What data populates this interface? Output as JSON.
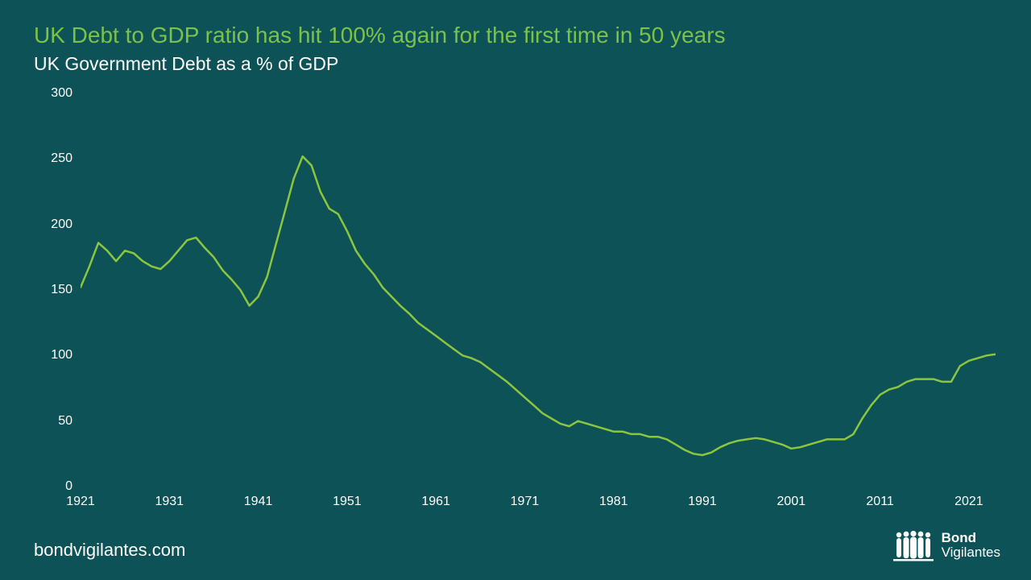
{
  "title": "UK Debt to GDP ratio has hit 100% again for the first time in 50 years",
  "subtitle": "UK Government Debt as a % of GDP",
  "footer_url": "bondvigilantes.com",
  "brand": {
    "line1": "Bond",
    "line2": "Vigilantes"
  },
  "chart": {
    "type": "line",
    "background_color": "#0d5257",
    "title_color": "#7cc24a",
    "text_color": "#ffffff",
    "line_color": "#8cc63f",
    "line_width": 2.5,
    "axis_fontsize": 16,
    "title_fontsize": 28,
    "subtitle_fontsize": 23,
    "x": {
      "min": 1921,
      "max": 2024,
      "ticks": [
        1921,
        1931,
        1941,
        1951,
        1961,
        1971,
        1981,
        1991,
        2001,
        2011,
        2021
      ]
    },
    "y": {
      "min": 0,
      "max": 300,
      "ticks": [
        0,
        50,
        100,
        150,
        200,
        250,
        300
      ]
    },
    "series": [
      {
        "year": 1921,
        "value": 152
      },
      {
        "year": 1922,
        "value": 168
      },
      {
        "year": 1923,
        "value": 186
      },
      {
        "year": 1924,
        "value": 180
      },
      {
        "year": 1925,
        "value": 172
      },
      {
        "year": 1926,
        "value": 180
      },
      {
        "year": 1927,
        "value": 178
      },
      {
        "year": 1928,
        "value": 172
      },
      {
        "year": 1929,
        "value": 168
      },
      {
        "year": 1930,
        "value": 166
      },
      {
        "year": 1931,
        "value": 172
      },
      {
        "year": 1932,
        "value": 180
      },
      {
        "year": 1933,
        "value": 188
      },
      {
        "year": 1934,
        "value": 190
      },
      {
        "year": 1935,
        "value": 182
      },
      {
        "year": 1936,
        "value": 175
      },
      {
        "year": 1937,
        "value": 165
      },
      {
        "year": 1938,
        "value": 158
      },
      {
        "year": 1939,
        "value": 150
      },
      {
        "year": 1940,
        "value": 138
      },
      {
        "year": 1941,
        "value": 145
      },
      {
        "year": 1942,
        "value": 160
      },
      {
        "year": 1943,
        "value": 185
      },
      {
        "year": 1944,
        "value": 210
      },
      {
        "year": 1945,
        "value": 235
      },
      {
        "year": 1946,
        "value": 252
      },
      {
        "year": 1947,
        "value": 245
      },
      {
        "year": 1948,
        "value": 225
      },
      {
        "year": 1949,
        "value": 212
      },
      {
        "year": 1950,
        "value": 208
      },
      {
        "year": 1951,
        "value": 195
      },
      {
        "year": 1952,
        "value": 180
      },
      {
        "year": 1953,
        "value": 170
      },
      {
        "year": 1954,
        "value": 162
      },
      {
        "year": 1955,
        "value": 152
      },
      {
        "year": 1956,
        "value": 145
      },
      {
        "year": 1957,
        "value": 138
      },
      {
        "year": 1958,
        "value": 132
      },
      {
        "year": 1959,
        "value": 125
      },
      {
        "year": 1960,
        "value": 120
      },
      {
        "year": 1961,
        "value": 115
      },
      {
        "year": 1962,
        "value": 110
      },
      {
        "year": 1963,
        "value": 105
      },
      {
        "year": 1964,
        "value": 100
      },
      {
        "year": 1965,
        "value": 98
      },
      {
        "year": 1966,
        "value": 95
      },
      {
        "year": 1967,
        "value": 90
      },
      {
        "year": 1968,
        "value": 85
      },
      {
        "year": 1969,
        "value": 80
      },
      {
        "year": 1970,
        "value": 74
      },
      {
        "year": 1971,
        "value": 68
      },
      {
        "year": 1972,
        "value": 62
      },
      {
        "year": 1973,
        "value": 56
      },
      {
        "year": 1974,
        "value": 52
      },
      {
        "year": 1975,
        "value": 48
      },
      {
        "year": 1976,
        "value": 46
      },
      {
        "year": 1977,
        "value": 50
      },
      {
        "year": 1978,
        "value": 48
      },
      {
        "year": 1979,
        "value": 46
      },
      {
        "year": 1980,
        "value": 44
      },
      {
        "year": 1981,
        "value": 42
      },
      {
        "year": 1982,
        "value": 42
      },
      {
        "year": 1983,
        "value": 40
      },
      {
        "year": 1984,
        "value": 40
      },
      {
        "year": 1985,
        "value": 38
      },
      {
        "year": 1986,
        "value": 38
      },
      {
        "year": 1987,
        "value": 36
      },
      {
        "year": 1988,
        "value": 32
      },
      {
        "year": 1989,
        "value": 28
      },
      {
        "year": 1990,
        "value": 25
      },
      {
        "year": 1991,
        "value": 24
      },
      {
        "year": 1992,
        "value": 26
      },
      {
        "year": 1993,
        "value": 30
      },
      {
        "year": 1994,
        "value": 33
      },
      {
        "year": 1995,
        "value": 35
      },
      {
        "year": 1996,
        "value": 36
      },
      {
        "year": 1997,
        "value": 37
      },
      {
        "year": 1998,
        "value": 36
      },
      {
        "year": 1999,
        "value": 34
      },
      {
        "year": 2000,
        "value": 32
      },
      {
        "year": 2001,
        "value": 29
      },
      {
        "year": 2002,
        "value": 30
      },
      {
        "year": 2003,
        "value": 32
      },
      {
        "year": 2004,
        "value": 34
      },
      {
        "year": 2005,
        "value": 36
      },
      {
        "year": 2006,
        "value": 36
      },
      {
        "year": 2007,
        "value": 36
      },
      {
        "year": 2008,
        "value": 40
      },
      {
        "year": 2009,
        "value": 52
      },
      {
        "year": 2010,
        "value": 62
      },
      {
        "year": 2011,
        "value": 70
      },
      {
        "year": 2012,
        "value": 74
      },
      {
        "year": 2013,
        "value": 76
      },
      {
        "year": 2014,
        "value": 80
      },
      {
        "year": 2015,
        "value": 82
      },
      {
        "year": 2016,
        "value": 82
      },
      {
        "year": 2017,
        "value": 82
      },
      {
        "year": 2018,
        "value": 80
      },
      {
        "year": 2019,
        "value": 80
      },
      {
        "year": 2020,
        "value": 92
      },
      {
        "year": 2021,
        "value": 96
      },
      {
        "year": 2022,
        "value": 98
      },
      {
        "year": 2023,
        "value": 100
      },
      {
        "year": 2024,
        "value": 101
      }
    ]
  }
}
